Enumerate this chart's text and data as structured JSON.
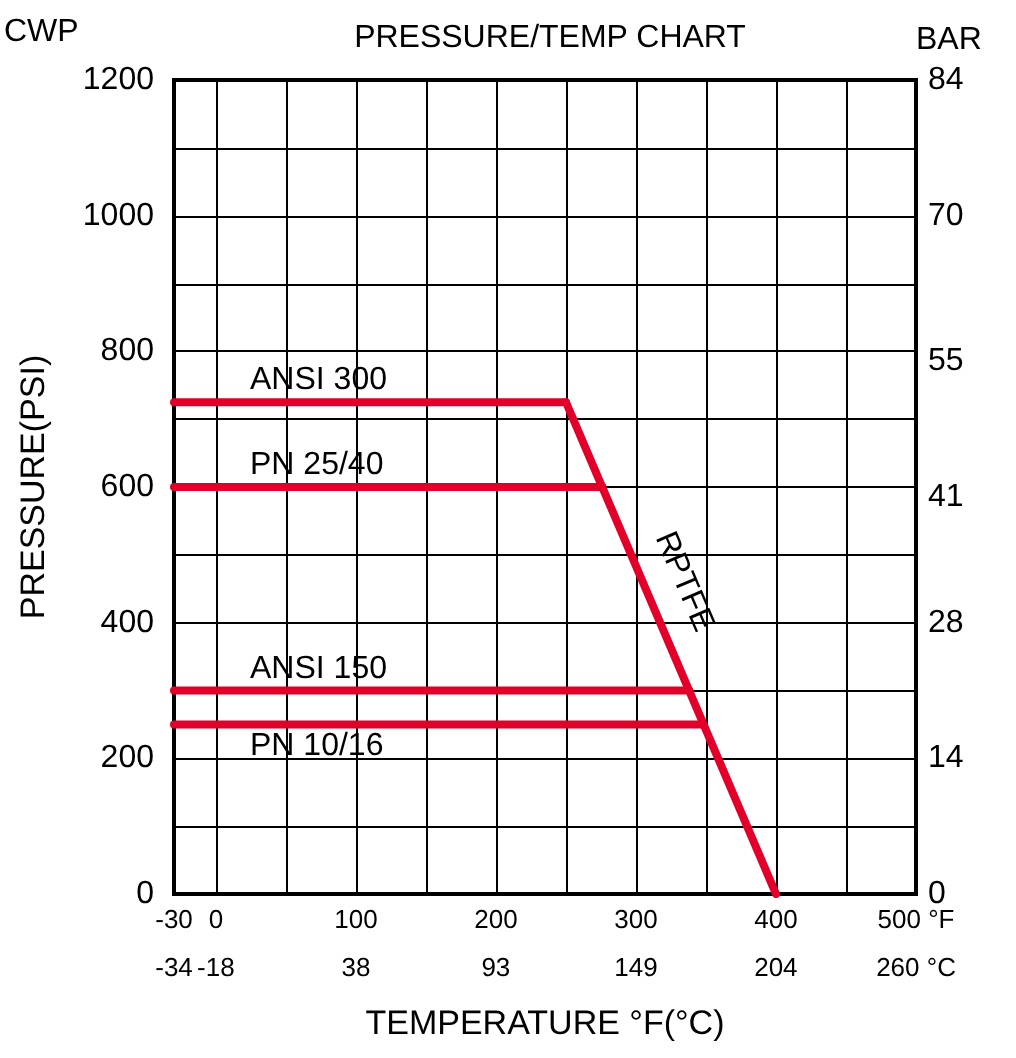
{
  "chart_data": {
    "type": "line",
    "title": "PRESSURE/TEMP CHART",
    "xlabel": "TEMPERATURE °F(°C)",
    "ylabel": "PRESSURE(PSI)",
    "y2label": "BAR",
    "annotations": [
      "CWP"
    ],
    "xlim": [
      -30,
      500
    ],
    "xticks": [
      -30,
      0,
      {
        "value": 50,
        "label": null
      },
      100,
      {
        "value": 150,
        "label": null
      },
      200,
      {
        "value": 250,
        "label": null
      },
      300,
      {
        "value": 350,
        "label": null
      },
      400,
      {
        "value": 450,
        "label": null
      },
      {
        "value": 500,
        "label": "500 °F"
      }
    ],
    "x2lim": [
      -34.4,
      260
    ],
    "x2ticks": [
      {
        "value": -34.4,
        "label": "-34"
      },
      {
        "value": -17.8,
        "label": "-18"
      },
      {
        "value": 37.8,
        "label": "38"
      },
      {
        "value": 93.3,
        "label": "93"
      },
      {
        "value": 148.9,
        "label": "149"
      },
      {
        "value": 204.4,
        "label": "204"
      },
      {
        "value": 260,
        "label": "260 °C"
      }
    ],
    "ylim": [
      0,
      1200
    ],
    "yticks": [
      0,
      {
        "value": 100,
        "label": null
      },
      200,
      {
        "value": 300,
        "label": null
      },
      400,
      {
        "value": 500,
        "label": null
      },
      600,
      {
        "value": 700,
        "label": null
      },
      800,
      {
        "value": 900,
        "label": null
      },
      1000,
      {
        "value": 1100,
        "label": null
      },
      1200
    ],
    "y2lim": [
      0,
      84
    ],
    "y2ticks": [
      0,
      14,
      28,
      41,
      55,
      70,
      84
    ],
    "grid": true,
    "legend": false,
    "marker": "none",
    "line_style": "solid",
    "series": [
      {
        "name": "ANSI 300",
        "color": "#e2002a",
        "x": [
          -30,
          250
        ],
        "values": [
          725,
          725
        ]
      },
      {
        "name": "PN 25/40",
        "color": "#e2002a",
        "x": [
          -30,
          276
        ],
        "values": [
          600,
          600
        ]
      },
      {
        "name": "ANSI 150",
        "color": "#e2002a",
        "x": [
          -30,
          338
        ],
        "values": [
          300,
          300
        ]
      },
      {
        "name": "PN 10/16",
        "color": "#e2002a",
        "x": [
          -30,
          348
        ],
        "values": [
          250,
          250
        ]
      },
      {
        "name": "RPTFE",
        "color": "#e2002a",
        "x": [
          250,
          400
        ],
        "values": [
          725,
          0
        ]
      }
    ]
  }
}
